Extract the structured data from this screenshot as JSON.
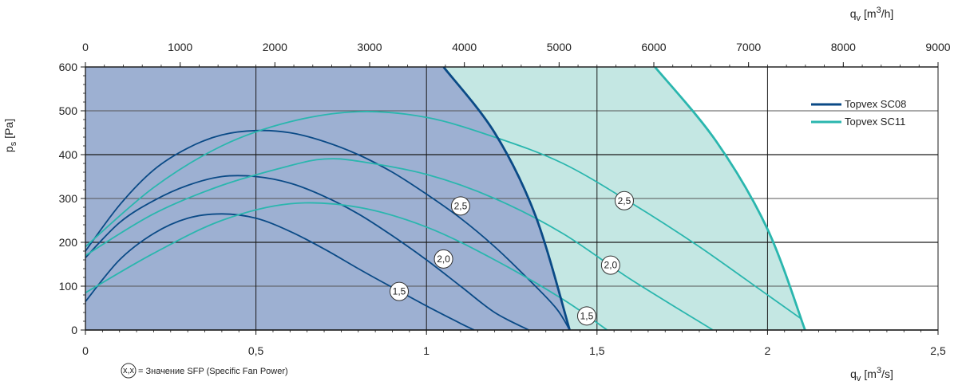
{
  "chart_data": {
    "type": "line",
    "x_bottom": {
      "label_q": "q",
      "label_sub": "v",
      "label_unit": "[m",
      "label_exp": "3",
      "label_end": "/s]",
      "ticks": [
        "0",
        "0,5",
        "1",
        "1,5",
        "2",
        "2,5"
      ],
      "range": [
        0,
        2.5
      ]
    },
    "x_top": {
      "label_q": "q",
      "label_sub": "v",
      "label_unit": "[m",
      "label_exp": "3",
      "label_end": "/h]",
      "ticks": [
        "0",
        "1000",
        "2000",
        "3000",
        "4000",
        "5000",
        "6000",
        "7000",
        "8000",
        "9000"
      ],
      "range": [
        0,
        9000
      ]
    },
    "y": {
      "label_p": "p",
      "label_sub": "s",
      "label_unit": "[Pa]",
      "ticks": [
        "0",
        "100",
        "200",
        "300",
        "400",
        "500",
        "600"
      ],
      "range": [
        0,
        600
      ]
    },
    "grid": true,
    "legend_position": "right",
    "colors": {
      "sc08": "#0a4a86",
      "sc11": "#2ab6ae",
      "sc08_fill": "#9db0d2",
      "sc11_fill": "#c4e7e3"
    },
    "series": [
      {
        "name": "Topvex SC08",
        "color": "#0a4a86",
        "envelope": [
          [
            1.05,
            600
          ],
          [
            1.2,
            450
          ],
          [
            1.32,
            260
          ],
          [
            1.42,
            0
          ]
        ],
        "sfp_curves": [
          {
            "label": "1,5",
            "points": [
              [
                0,
                65
              ],
              [
                0.1,
                160
              ],
              [
                0.2,
                220
              ],
              [
                0.3,
                255
              ],
              [
                0.4,
                265
              ],
              [
                0.5,
                255
              ],
              [
                0.6,
                225
              ],
              [
                0.7,
                185
              ],
              [
                0.8,
                140
              ],
              [
                0.9,
                97
              ],
              [
                1.0,
                55
              ],
              [
                1.1,
                15
              ],
              [
                1.14,
                0
              ]
            ],
            "label_at": [
              0.92,
              88
            ]
          },
          {
            "label": "2,0",
            "points": [
              [
                0,
                165
              ],
              [
                0.1,
                245
              ],
              [
                0.2,
                295
              ],
              [
                0.3,
                330
              ],
              [
                0.4,
                350
              ],
              [
                0.5,
                350
              ],
              [
                0.6,
                335
              ],
              [
                0.7,
                305
              ],
              [
                0.8,
                265
              ],
              [
                0.9,
                215
              ],
              [
                1.0,
                160
              ],
              [
                1.1,
                100
              ],
              [
                1.2,
                40
              ],
              [
                1.3,
                0
              ]
            ],
            "label_at": [
              1.05,
              162
            ]
          },
          {
            "label": "2,5",
            "points": [
              [
                0,
                180
              ],
              [
                0.1,
                285
              ],
              [
                0.2,
                365
              ],
              [
                0.3,
                415
              ],
              [
                0.4,
                445
              ],
              [
                0.5,
                455
              ],
              [
                0.6,
                450
              ],
              [
                0.7,
                430
              ],
              [
                0.8,
                400
              ],
              [
                0.9,
                360
              ],
              [
                1.0,
                310
              ],
              [
                1.1,
                255
              ],
              [
                1.2,
                190
              ],
              [
                1.3,
                115
              ],
              [
                1.38,
                50
              ],
              [
                1.42,
                0
              ]
            ],
            "label_at": [
              1.1,
              283
            ]
          }
        ]
      },
      {
        "name": "Topvex SC11",
        "color": "#2ab6ae",
        "envelope": [
          [
            1.67,
            600
          ],
          [
            1.85,
            430
          ],
          [
            2.0,
            230
          ],
          [
            2.11,
            0
          ]
        ],
        "sfp_curves": [
          {
            "label": "1,5",
            "points": [
              [
                0,
                85
              ],
              [
                0.2,
                175
              ],
              [
                0.4,
                250
              ],
              [
                0.6,
                288
              ],
              [
                0.8,
                280
              ],
              [
                1.0,
                235
              ],
              [
                1.2,
                160
              ],
              [
                1.4,
                70
              ],
              [
                1.53,
                0
              ]
            ],
            "label_at": [
              1.47,
              32
            ]
          },
          {
            "label": "2,0",
            "points": [
              [
                0,
                170
              ],
              [
                0.2,
                265
              ],
              [
                0.4,
                330
              ],
              [
                0.6,
                375
              ],
              [
                0.7,
                390
              ],
              [
                0.8,
                385
              ],
              [
                1.0,
                355
              ],
              [
                1.2,
                300
              ],
              [
                1.4,
                220
              ],
              [
                1.6,
                115
              ],
              [
                1.84,
                0
              ]
            ],
            "label_at": [
              1.54,
              148
            ]
          },
          {
            "label": "2,5",
            "points": [
              [
                0,
                190
              ],
              [
                0.2,
                325
              ],
              [
                0.4,
                420
              ],
              [
                0.6,
                475
              ],
              [
                0.8,
                498
              ],
              [
                1.0,
                485
              ],
              [
                1.2,
                440
              ],
              [
                1.4,
                380
              ],
              [
                1.6,
                290
              ],
              [
                1.8,
                190
              ],
              [
                2.0,
                80
              ],
              [
                2.1,
                25
              ]
            ],
            "label_at": [
              1.58,
              295
            ]
          }
        ]
      }
    ]
  },
  "footnote": {
    "symbol": "x,x",
    "text": "= Значение SFP (Specific Fan Power)"
  }
}
